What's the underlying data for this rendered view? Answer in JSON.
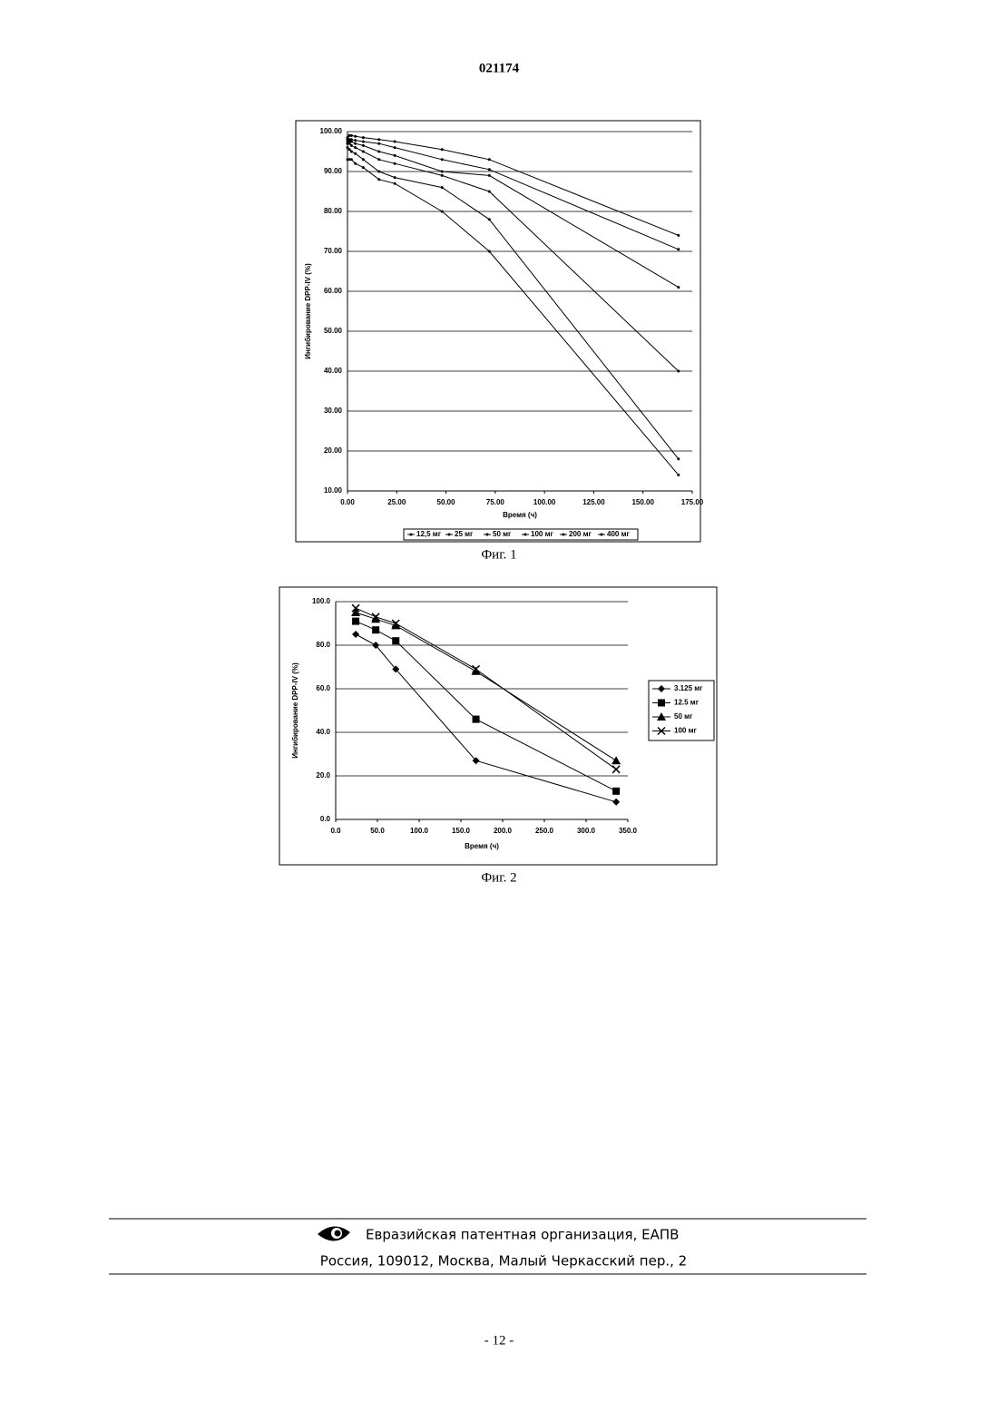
{
  "header": {
    "number": "021174"
  },
  "chart_data": [
    {
      "type": "line",
      "y_label": "Ингибирование DPP-IV (%)",
      "x_label": "Время (ч)",
      "x": [
        0,
        1,
        2,
        4,
        8,
        16,
        24,
        48,
        72,
        168
      ],
      "series": [
        {
          "name": "12,5 мг",
          "color": "#000000",
          "marker": "dot",
          "values": [
            93,
            93,
            93,
            92,
            91,
            88,
            87,
            80,
            70,
            14
          ]
        },
        {
          "name": "25 мг",
          "color": "#000000",
          "marker": "dot",
          "values": [
            96,
            95.5,
            95,
            94.5,
            93,
            90,
            88.5,
            86,
            78,
            18
          ]
        },
        {
          "name": "50 мг",
          "color": "#000000",
          "marker": "dot",
          "values": [
            97,
            97,
            96.5,
            96,
            95,
            93,
            92,
            89,
            85,
            40
          ]
        },
        {
          "name": "100 мг",
          "color": "#000000",
          "marker": "dot",
          "values": [
            97.5,
            97.5,
            97.5,
            97,
            96.5,
            95,
            94,
            90,
            89,
            61
          ]
        },
        {
          "name": "200 мг",
          "color": "#000000",
          "marker": "dot",
          "values": [
            98,
            98,
            98,
            97.8,
            97.5,
            97,
            96,
            93,
            90.5,
            70.5
          ]
        },
        {
          "name": "400 мг",
          "color": "#000000",
          "marker": "dot",
          "values": [
            98.5,
            99,
            99,
            98.8,
            98.5,
            98,
            97.5,
            95.5,
            93,
            74
          ]
        }
      ],
      "xlim": [
        0,
        175
      ],
      "xticks": [
        {
          "value": 0,
          "label": "0.00"
        },
        {
          "value": 25,
          "label": "25.00"
        },
        {
          "value": 50,
          "label": "50.00"
        },
        {
          "value": 75,
          "label": "75.00"
        },
        {
          "value": 100,
          "label": "100.00"
        },
        {
          "value": 125,
          "label": "125.00"
        },
        {
          "value": 150,
          "label": "150.00"
        },
        {
          "value": 175,
          "label": "175.00"
        }
      ],
      "ylim": [
        10,
        100
      ],
      "yticks": [
        {
          "value": 10,
          "label": "10.00"
        },
        {
          "value": 20,
          "label": "20.00"
        },
        {
          "value": 30,
          "label": "30.00"
        },
        {
          "value": 40,
          "label": "40.00"
        },
        {
          "value": 50,
          "label": "50.00"
        },
        {
          "value": 60,
          "label": "60.00"
        },
        {
          "value": 70,
          "label": "70.00"
        },
        {
          "value": 80,
          "label": "80.00"
        },
        {
          "value": 90,
          "label": "90.00"
        },
        {
          "value": 100,
          "label": "100.00"
        }
      ],
      "grid": true,
      "legend": "bottom"
    },
    {
      "type": "line",
      "y_label": "Ингибирование DPP-IV (%)",
      "x_label": "Время (ч)",
      "x": [
        24,
        48,
        72,
        168,
        336
      ],
      "series": [
        {
          "name": "3.125 мг",
          "color": "#000000",
          "marker": "diamond",
          "values": [
            85,
            80,
            69,
            27,
            8
          ]
        },
        {
          "name": "12.5 мг",
          "color": "#000000",
          "marker": "square",
          "values": [
            91,
            87,
            82,
            46,
            13
          ]
        },
        {
          "name": "50 мг",
          "color": "#000000",
          "marker": "triangle",
          "values": [
            95,
            92,
            89,
            68,
            27
          ]
        },
        {
          "name": "100 мг",
          "color": "#000000",
          "marker": "x",
          "values": [
            97,
            93,
            90,
            69,
            23
          ]
        }
      ],
      "xlim": [
        0,
        350
      ],
      "xticks": [
        {
          "value": 0,
          "label": "0.0"
        },
        {
          "value": 50,
          "label": "50.0"
        },
        {
          "value": 100,
          "label": "100.0"
        },
        {
          "value": 150,
          "label": "150.0"
        },
        {
          "value": 200,
          "label": "200.0"
        },
        {
          "value": 250,
          "label": "250.0"
        },
        {
          "value": 300,
          "label": "300.0"
        },
        {
          "value": 350,
          "label": "350.0"
        }
      ],
      "ylim": [
        0,
        100
      ],
      "yticks": [
        {
          "value": 0,
          "label": "0.0"
        },
        {
          "value": 20,
          "label": "20.0"
        },
        {
          "value": 40,
          "label": "40.0"
        },
        {
          "value": 60,
          "label": "60.0"
        },
        {
          "value": 80,
          "label": "80.0"
        },
        {
          "value": 100,
          "label": "100.0"
        }
      ],
      "grid": true,
      "legend": "right"
    }
  ],
  "captions": [
    "Фиг. 1",
    "Фиг. 2"
  ],
  "footer": {
    "organization": "Евразийская патентная организация, ЕАПВ",
    "address": "Россия, 109012, Москва, Малый Черкасский пер., 2"
  },
  "page_number": "- 12 -"
}
